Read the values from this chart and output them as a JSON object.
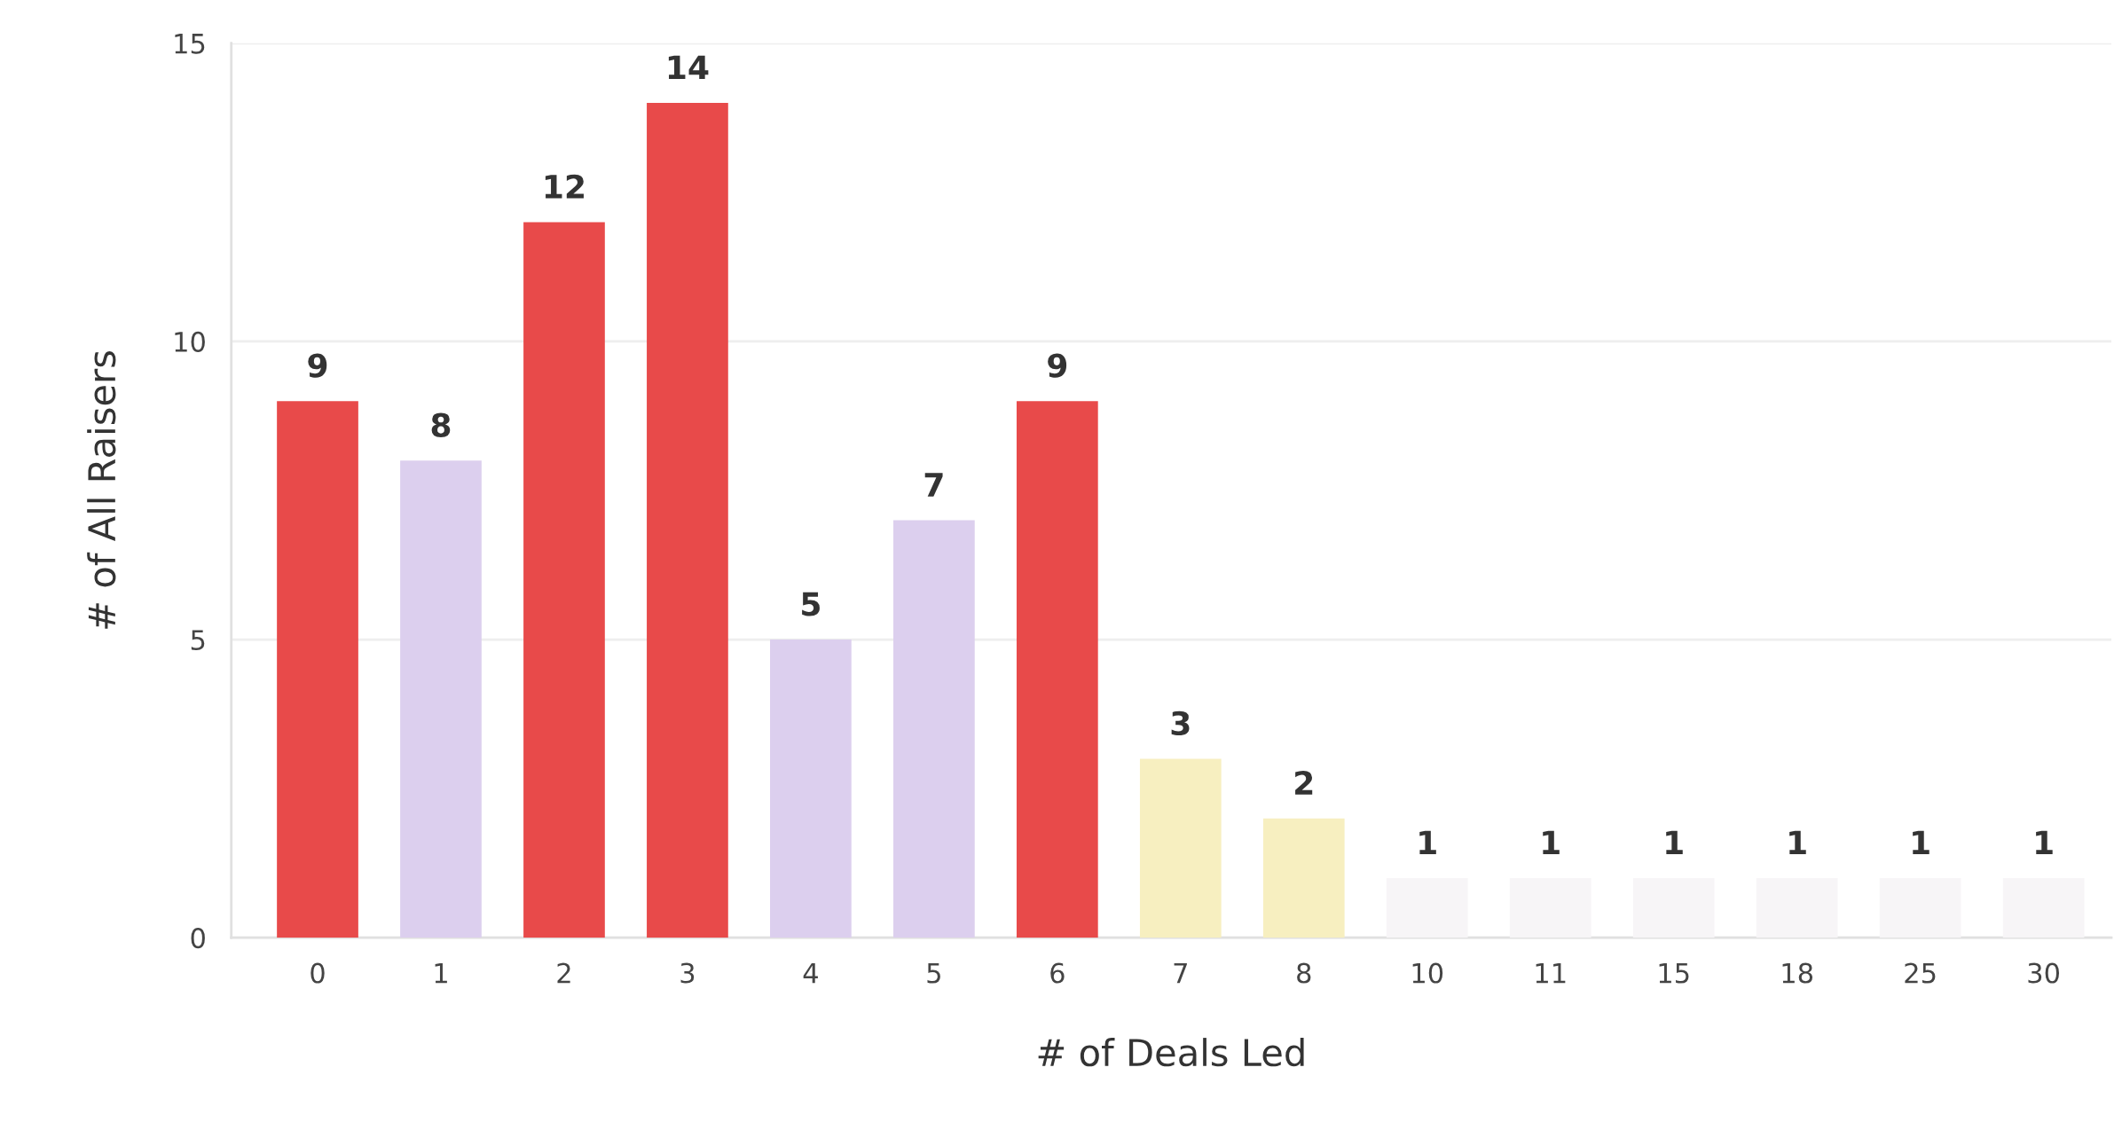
{
  "chart_data": {
    "type": "bar",
    "xlabel": "# of Deals Led",
    "ylabel": "# of All Raisers",
    "categories": [
      "0",
      "1",
      "2",
      "3",
      "4",
      "5",
      "6",
      "7",
      "8",
      "10",
      "11",
      "15",
      "18",
      "25",
      "30"
    ],
    "values": [
      9,
      8,
      12,
      14,
      5,
      7,
      9,
      3,
      2,
      1,
      1,
      1,
      1,
      1,
      1
    ],
    "colors": [
      "#e84a4a",
      "#dccfee",
      "#e84a4a",
      "#e84a4a",
      "#dccfee",
      "#dccfee",
      "#e84a4a",
      "#f7efc0",
      "#f7efc0",
      "#f7f5f7",
      "#f7f5f7",
      "#f7f5f7",
      "#f7f5f7",
      "#f7f5f7",
      "#f7f5f7"
    ],
    "ylim": [
      0,
      15
    ],
    "yticks": [
      0,
      5,
      10,
      15
    ],
    "grid": "y",
    "data_labels": true
  }
}
